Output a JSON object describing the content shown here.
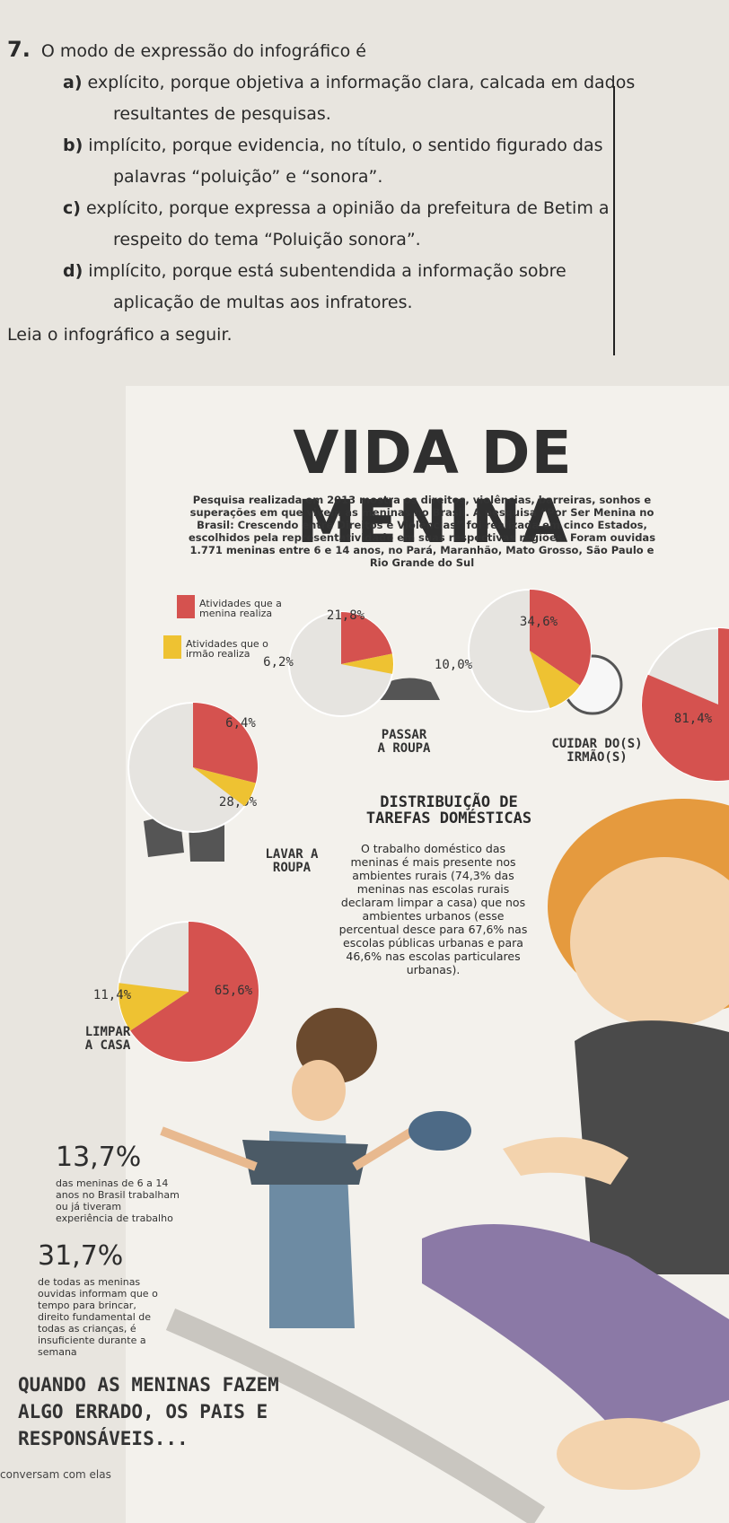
{
  "question": {
    "number": "7.",
    "stem": "O modo de expressão do infográfico é",
    "options": [
      {
        "letter": "a)",
        "text": "explícito, porque objetiva a informação clara, calcada em dados resultantes de pesquisas."
      },
      {
        "letter": "b)",
        "text": "implícito, porque evidencia, no título, o sentido figurado das palavras “poluição” e “sonora”."
      },
      {
        "letter": "c)",
        "text": "explícito, porque expressa a opinião da prefeitura de Betim a respeito do tema “Poluição sonora”."
      },
      {
        "letter": "d)",
        "text": "implícito, porque está subentendida a informação sobre aplicação de multas aos infratores."
      }
    ]
  },
  "instruction": "Leia o infográfico a seguir.",
  "infographic": {
    "title": "VIDA DE MENINA",
    "intro": "Pesquisa realizada em 2013 mostra os direitos, violências, barreiras, sonhos e superações em que vivem as meninas no Brasil. A pesquisa “Por Ser Menina no Brasil: Crescendo entre Direitos e Violências” foi realizada em cinco Estados, escolhidos pela representatividade em suas respectivas regiões. Foram ouvidas 1.771 meninas entre 6 e 14 anos, no Pará, Maranhão, Mato Grosso, São Paulo e Rio Grande do Sul",
    "legend": [
      {
        "label": "Atividades que a menina realiza",
        "color": "#d5524f"
      },
      {
        "label": "Atividades que o irmão realiza",
        "color": "#eec232"
      }
    ],
    "charts": [
      {
        "name": "PASSAR\nA ROUPA",
        "girl": {
          "value": 21.8,
          "label": "21,8%"
        },
        "brother": {
          "value": 6.2,
          "label": "6,2%"
        }
      },
      {
        "name": "CUIDAR DO(S)\nIRMÃO(S)",
        "girl": {
          "value": 34.6,
          "label": "34,6%"
        },
        "brother": {
          "value": 10.0,
          "label": "10,0%"
        }
      },
      {
        "name": "LAVAR A\nROUPA",
        "girl": {
          "value": 28.9,
          "label": "28,9%"
        },
        "brother": {
          "value": 6.4,
          "label": "6,4%"
        }
      },
      {
        "name": "LIMPAR\nA CASA",
        "girl": {
          "value": 65.6,
          "label": "65,6%"
        },
        "brother": {
          "value": 11.4,
          "label": "11,4%"
        }
      },
      {
        "girl": {
          "value": 81.4,
          "label": "81,4%"
        }
      }
    ],
    "section_title": "DISTRIBUIÇÃO DE\nTAREFAS DOMÉSTICAS",
    "section_text": "O trabalho doméstico das meninas é mais presente nos ambientes rurais (74,3% das meninas nas escolas rurais declaram limpar a casa) que nos ambientes urbanos (esse percentual desce para 67,6% nas escolas públicas urbanas e para 46,6% nas escolas particulares urbanas).",
    "stats": [
      {
        "value": "13,7%",
        "text": "das meninas de 6 a 14 anos no Brasil trabalham ou já tiveram experiência de trabalho"
      },
      {
        "value": "31,7%",
        "text": "de todas as meninas ouvidas informam que o tempo para brincar, direito fundamental de todas as crianças, é insuficiente durante a semana"
      }
    ],
    "closing": "QUANDO AS MENINAS FAZEM ALGO ERRADO, OS PAIS E RESPONSÁVEIS...",
    "closing_answer": "conversam com elas"
  }
}
